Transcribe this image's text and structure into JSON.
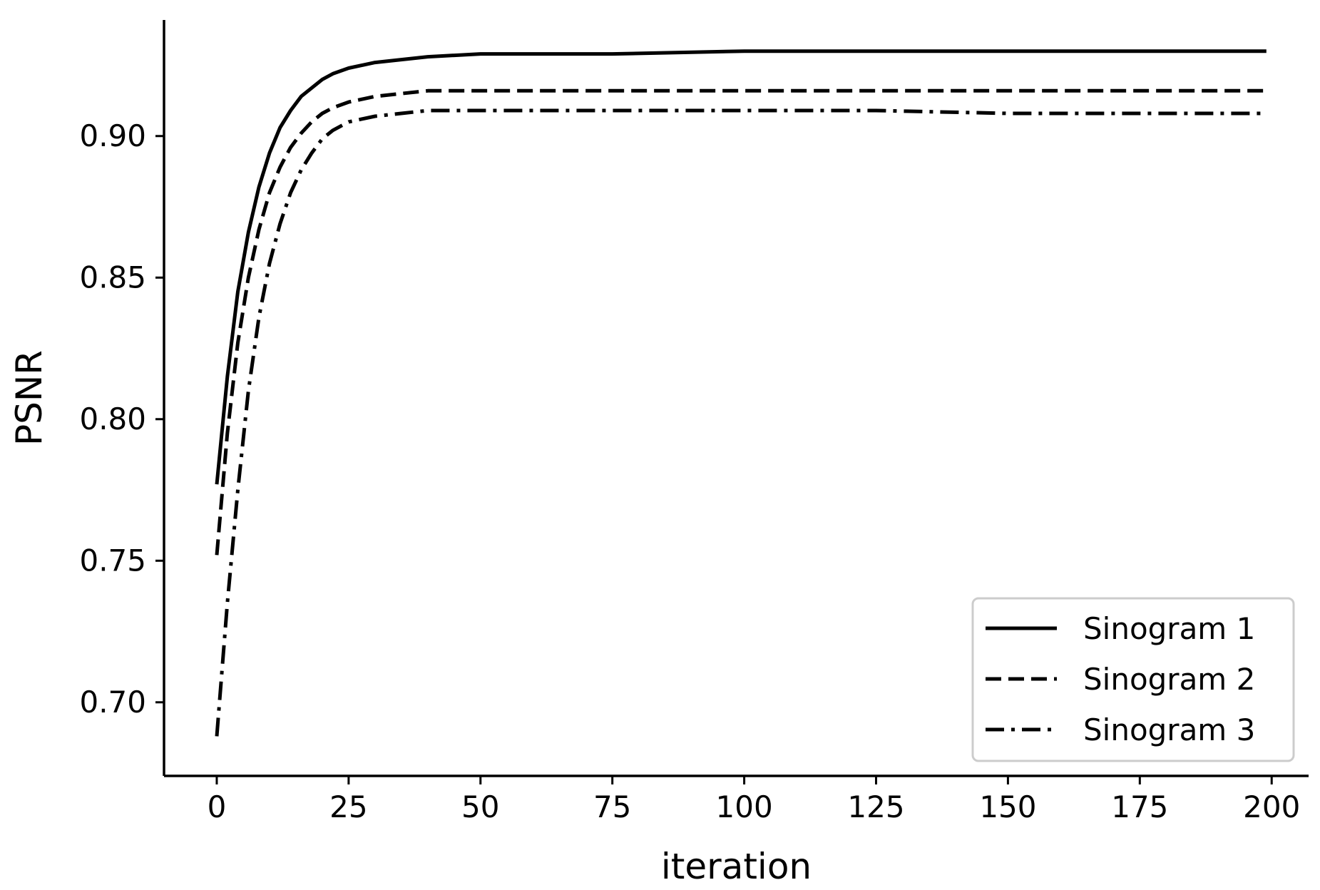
{
  "chart_data": {
    "type": "line",
    "xlabel": "iteration",
    "ylabel": "PSNR",
    "xlim": [
      -10,
      207
    ],
    "ylim": [
      0.674,
      0.941
    ],
    "xticks": [
      0,
      25,
      50,
      75,
      100,
      125,
      150,
      175,
      200
    ],
    "xtick_labels": [
      "0",
      "25",
      "50",
      "75",
      "100",
      "125",
      "150",
      "175",
      "200"
    ],
    "yticks": [
      0.7,
      0.75,
      0.8,
      0.85,
      0.9
    ],
    "ytick_labels": [
      "0.70",
      "0.75",
      "0.80",
      "0.85",
      "0.90"
    ],
    "grid": false,
    "legend_position": "lower-right",
    "x": [
      0,
      2,
      4,
      6,
      8,
      10,
      12,
      14,
      16,
      18,
      20,
      22,
      25,
      30,
      35,
      40,
      50,
      75,
      100,
      125,
      150,
      175,
      199
    ],
    "series": [
      {
        "name": "Sinogram 1",
        "style": "solid",
        "color": "#000000",
        "values": [
          0.777,
          0.815,
          0.845,
          0.866,
          0.882,
          0.894,
          0.903,
          0.909,
          0.914,
          0.917,
          0.92,
          0.922,
          0.924,
          0.926,
          0.927,
          0.928,
          0.929,
          0.929,
          0.93,
          0.93,
          0.93,
          0.93,
          0.93
        ]
      },
      {
        "name": "Sinogram 2",
        "style": "dashed",
        "color": "#000000",
        "values": [
          0.752,
          0.795,
          0.827,
          0.85,
          0.867,
          0.88,
          0.889,
          0.896,
          0.901,
          0.905,
          0.908,
          0.91,
          0.912,
          0.914,
          0.915,
          0.916,
          0.916,
          0.916,
          0.916,
          0.916,
          0.916,
          0.916,
          0.916
        ]
      },
      {
        "name": "Sinogram 3",
        "style": "dashdot",
        "color": "#000000",
        "values": [
          0.688,
          0.735,
          0.775,
          0.81,
          0.836,
          0.855,
          0.869,
          0.88,
          0.888,
          0.894,
          0.899,
          0.902,
          0.905,
          0.907,
          0.908,
          0.909,
          0.909,
          0.909,
          0.909,
          0.909,
          0.908,
          0.908,
          0.908
        ]
      }
    ]
  }
}
